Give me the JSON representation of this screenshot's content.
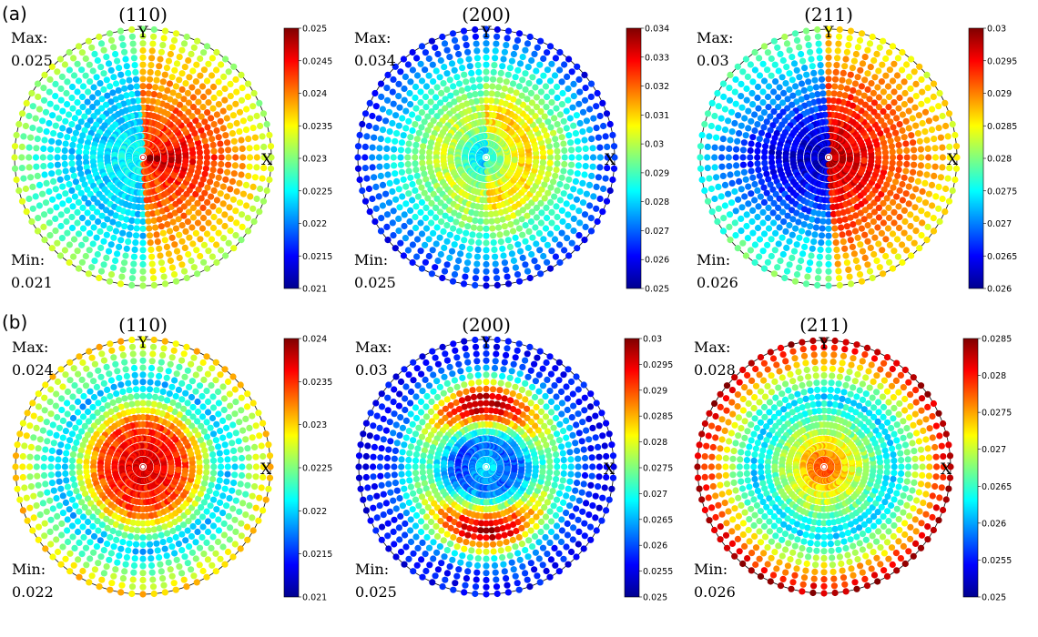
{
  "figure": {
    "row_labels": [
      "(a)",
      "(b)"
    ],
    "axis_labels": {
      "x": "X",
      "y": "Y"
    },
    "stat_labels": {
      "max": "Max:",
      "min": "Min:"
    }
  },
  "colormap": "jet",
  "chart_data": [
    {
      "type": "scatter",
      "subtype": "pole-figure",
      "row": "(a)",
      "title": "(110)",
      "max_text": "0.025",
      "min_text": "0.021",
      "clim": [
        0.021,
        0.025
      ],
      "colorbar_ticks": [
        "0.025",
        "0.0245",
        "0.024",
        "0.0235",
        "0.023",
        "0.0225",
        "0.022",
        "0.0215",
        "0.021"
      ],
      "pattern": {
        "center_value": 0.0249,
        "right_value": 0.0248,
        "left_value": 0.0221,
        "rim_value": 0.0232,
        "top_bottom_value": 0.0224
      }
    },
    {
      "type": "scatter",
      "subtype": "pole-figure",
      "row": "(a)",
      "title": "(200)",
      "max_text": "0.034",
      "min_text": "0.025",
      "clim": [
        0.025,
        0.034
      ],
      "colorbar_ticks": [
        "0.034",
        "0.033",
        "0.032",
        "0.031",
        "0.03",
        "0.029",
        "0.028",
        "0.027",
        "0.026",
        "0.025"
      ],
      "pattern": {
        "center_value": 0.0278,
        "mid_value": 0.0305,
        "rim_value": 0.0262,
        "right_value": 0.0315,
        "left_value": 0.0285
      }
    },
    {
      "type": "scatter",
      "subtype": "pole-figure",
      "row": "(a)",
      "title": "(211)",
      "max_text": "0.03",
      "min_text": "0.026",
      "clim": [
        0.026,
        0.03
      ],
      "colorbar_ticks": [
        "0.03",
        "0.0295",
        "0.029",
        "0.0285",
        "0.028",
        "0.0275",
        "0.027",
        "0.0265",
        "0.026"
      ],
      "pattern": {
        "center_value": 0.0298,
        "right_value": 0.0292,
        "left_value": 0.0262,
        "rim_value": 0.0285
      }
    },
    {
      "type": "scatter",
      "subtype": "pole-figure",
      "row": "(b)",
      "title": "(110)",
      "max_text": "0.024",
      "min_text": "0.022",
      "clim": [
        0.021,
        0.024
      ],
      "colorbar_ticks": [
        "0.024",
        "0.0235",
        "0.023",
        "0.0225",
        "0.022",
        "0.0215",
        "0.021"
      ],
      "pattern": {
        "center_value": 0.0238,
        "mid_value": 0.0219,
        "rim_value": 0.023
      }
    },
    {
      "type": "scatter",
      "subtype": "pole-figure",
      "row": "(b)",
      "title": "(200)",
      "max_text": "0.03",
      "min_text": "0.025",
      "clim": [
        0.025,
        0.03
      ],
      "colorbar_ticks": [
        "0.03",
        "0.0295",
        "0.029",
        "0.0285",
        "0.028",
        "0.0275",
        "0.027",
        "0.0265",
        "0.026",
        "0.0255",
        "0.025"
      ],
      "pattern": {
        "center_value": 0.027,
        "top_bottom_value": 0.0298,
        "sides_value": 0.0272,
        "rim_value": 0.0256
      }
    },
    {
      "type": "scatter",
      "subtype": "pole-figure",
      "row": "(b)",
      "title": "(211)",
      "max_text": "0.028",
      "min_text": "0.026",
      "clim": [
        0.025,
        0.0285
      ],
      "colorbar_ticks": [
        "0.0285",
        "0.028",
        "0.0275",
        "0.027",
        "0.0265",
        "0.026",
        "0.0255",
        "0.025"
      ],
      "pattern": {
        "center_value": 0.028,
        "mid_value": 0.0262,
        "rim_value": 0.0283
      }
    }
  ]
}
